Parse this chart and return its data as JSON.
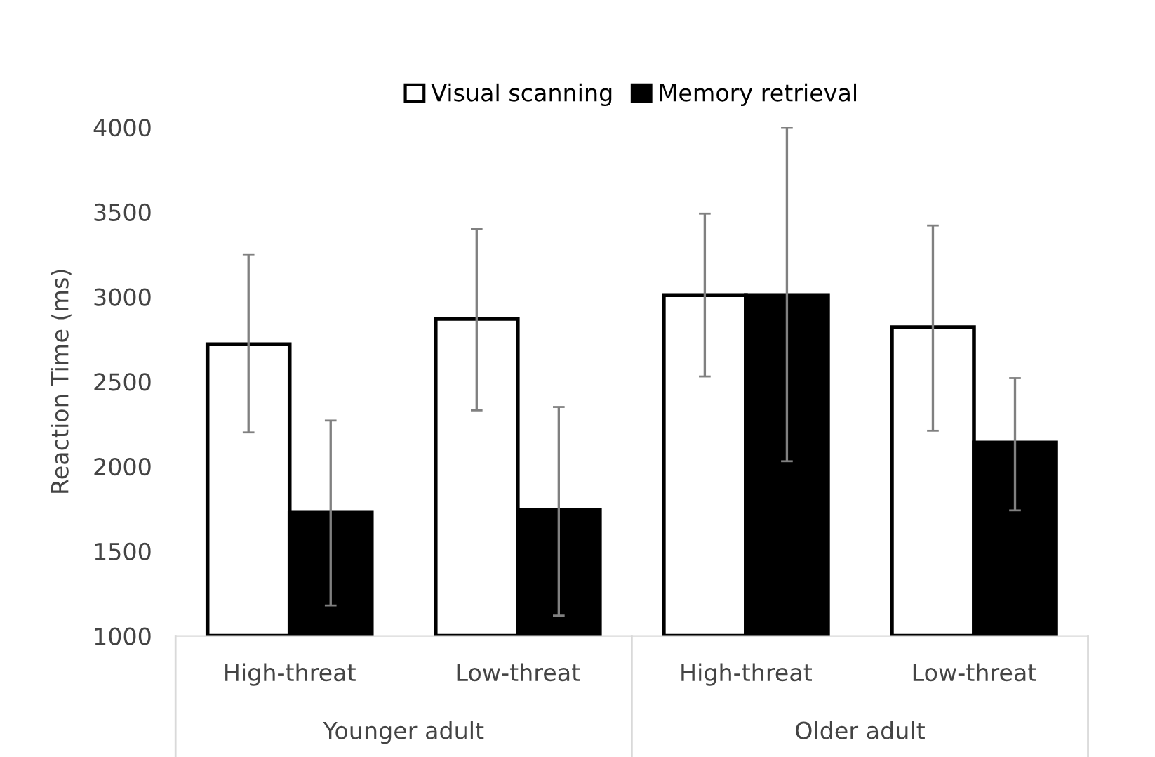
{
  "chart_data": {
    "type": "bar",
    "ylabel": "Reaction Time (ms)",
    "categories": [
      "High-threat",
      "Low-threat",
      "High-threat",
      "Low-threat"
    ],
    "series": [
      {
        "name": "Visual scanning",
        "color": "#ffffff",
        "values": [
          2720,
          2870,
          3010,
          2820
        ],
        "errors": [
          [
            2200,
            3250
          ],
          [
            2330,
            3400
          ],
          [
            2530,
            3490
          ],
          [
            2210,
            3420
          ]
        ]
      },
      {
        "name": "Memory retrieval",
        "color": "#000000",
        "values": [
          1730,
          1740,
          3010,
          2140
        ],
        "errors": [
          [
            1180,
            2270
          ],
          [
            1120,
            2350
          ],
          [
            2030,
            4000
          ],
          [
            1740,
            2520
          ]
        ]
      }
    ],
    "annotations": [
      "Younger adult",
      "Older adult"
    ],
    "ylim": [
      1000,
      4000
    ],
    "yticks": [
      1000,
      1500,
      2000,
      2500,
      3000,
      3500,
      4000
    ],
    "grid": false,
    "legend": "top"
  }
}
